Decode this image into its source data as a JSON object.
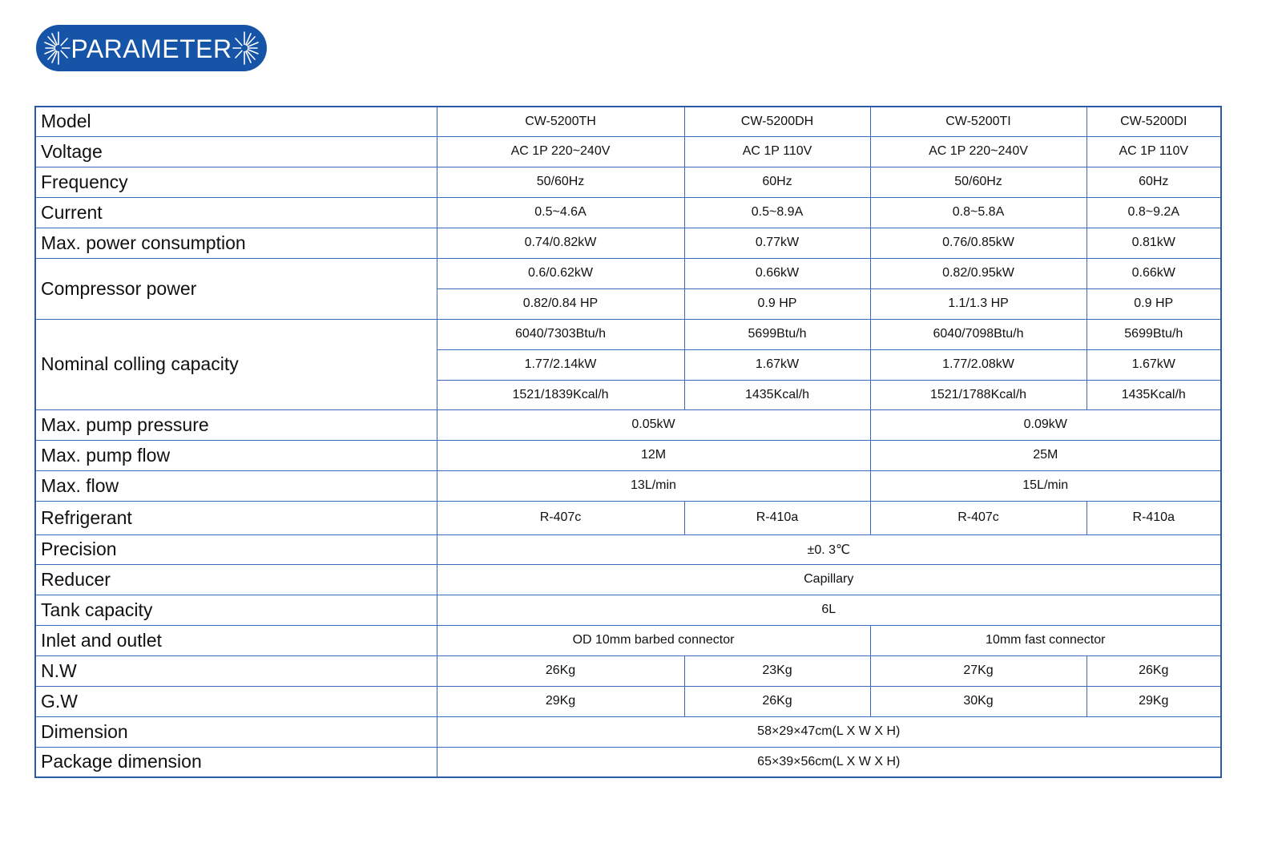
{
  "banner": {
    "title": "PARAMETER"
  },
  "colors": {
    "accent": "#1554a6",
    "border": "#3a6ab8"
  },
  "models": [
    "CW-5200TH",
    "CW-5200DH",
    "CW-5200TI",
    "CW-5200DI"
  ],
  "labels": {
    "model": "Model",
    "voltage": "Voltage",
    "frequency": "Frequency",
    "current": "Current",
    "max_power": "Max. power consumption",
    "compressor_power": "Compressor power",
    "cooling_capacity": "Nominal colling capacity",
    "pump_pressure": "Max. pump pressure",
    "pump_flow": "Max. pump flow",
    "max_flow": "Max.  flow",
    "refrigerant": "Refrigerant",
    "precision": "Precision",
    "reducer": "Reducer",
    "tank_capacity": "Tank capacity",
    "inlet_outlet": "Inlet and outlet",
    "nw": "N.W",
    "gw": "G.W",
    "dimension": "Dimension",
    "package_dimension": "Package dimension"
  },
  "values": {
    "voltage": [
      "AC 1P 220~240V",
      "AC 1P 110V",
      "AC 1P 220~240V",
      "AC 1P 110V"
    ],
    "frequency": [
      "50/60Hz",
      "60Hz",
      "50/60Hz",
      "60Hz"
    ],
    "current": [
      "0.5~4.6A",
      "0.5~8.9A",
      "0.8~5.8A",
      "0.8~9.2A"
    ],
    "max_power": [
      "0.74/0.82kW",
      "0.77kW",
      "0.76/0.85kW",
      "0.81kW"
    ],
    "compressor_kw": [
      "0.6/0.62kW",
      "0.66kW",
      "0.82/0.95kW",
      "0.66kW"
    ],
    "compressor_hp": [
      "0.82/0.84 HP",
      "0.9 HP",
      "1.1/1.3 HP",
      "0.9 HP"
    ],
    "cooling_btu": [
      "6040/7303Btu/h",
      "5699Btu/h",
      "6040/7098Btu/h",
      "5699Btu/h"
    ],
    "cooling_kw": [
      "1.77/2.14kW",
      "1.67kW",
      "1.77/2.08kW",
      "1.67kW"
    ],
    "cooling_kcal": [
      "1521/1839Kcal/h",
      "1435Kcal/h",
      "1521/1788Kcal/h",
      "1435Kcal/h"
    ],
    "pump_pressure": [
      "0.05kW",
      "0.09kW"
    ],
    "pump_flow": [
      "12M",
      "25M"
    ],
    "max_flow": [
      "13L/min",
      "15L/min"
    ],
    "refrigerant": [
      "R-407c",
      "R-410a",
      "R-407c",
      "R-410a"
    ],
    "precision": "±0. 3℃",
    "reducer": "Capillary",
    "tank_capacity": "6L",
    "inlet_outlet": [
      "OD 10mm barbed connector",
      "10mm fast connector"
    ],
    "nw": [
      "26Kg",
      "23Kg",
      "27Kg",
      "26Kg"
    ],
    "gw": [
      "29Kg",
      "26Kg",
      "30Kg",
      "29Kg"
    ],
    "dimension": "58×29×47cm(L X W X H)",
    "package_dimension": "65×39×56cm(L X W X H)"
  }
}
